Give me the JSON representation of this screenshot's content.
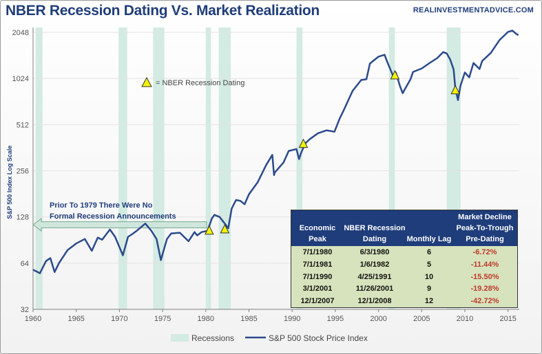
{
  "header": {
    "title": "NBER Recession Dating Vs. Market Realization",
    "site": "REALINVESTMENTADVICE.COM"
  },
  "chart_data": {
    "type": "line",
    "title": "NBER Recession Dating Vs. Market Realization",
    "ylabel": "S&P 500 Index Log Scale",
    "xlabel": "",
    "yscale": "log2",
    "ylim": [
      32,
      2200
    ],
    "xlim": [
      1960,
      2016.3
    ],
    "yticks": [
      "2048",
      "1024",
      "512",
      "256",
      "128",
      "64",
      "32"
    ],
    "xticks": [
      "1960",
      "1965",
      "1970",
      "1975",
      "1980",
      "1985",
      "1990",
      "1995",
      "2000",
      "2005",
      "2010",
      "2015"
    ],
    "legend": {
      "position": "bottom-center",
      "recessions_label": "Recessions",
      "series_label": "S&P 500 Stock Price Index"
    },
    "recessions": [
      [
        1960.3,
        1961.1
      ],
      [
        1969.9,
        1970.9
      ],
      [
        1973.9,
        1975.2
      ],
      [
        1980.0,
        1980.6
      ],
      [
        1981.5,
        1982.9
      ],
      [
        1990.5,
        1991.2
      ],
      [
        2001.2,
        2001.9
      ],
      [
        2007.9,
        2009.5
      ]
    ],
    "series": [
      {
        "name": "S&P 500 Stock Price Index",
        "points": [
          [
            1960.0,
            58
          ],
          [
            1960.8,
            55
          ],
          [
            1961.5,
            66
          ],
          [
            1962.0,
            69
          ],
          [
            1962.5,
            56
          ],
          [
            1963.0,
            64
          ],
          [
            1964.0,
            78
          ],
          [
            1965.0,
            86
          ],
          [
            1966.0,
            92
          ],
          [
            1966.8,
            77
          ],
          [
            1967.5,
            94
          ],
          [
            1968.0,
            91
          ],
          [
            1968.9,
            106
          ],
          [
            1969.5,
            95
          ],
          [
            1970.4,
            72
          ],
          [
            1971.0,
            95
          ],
          [
            1971.5,
            99
          ],
          [
            1972.0,
            104
          ],
          [
            1973.0,
            116
          ],
          [
            1973.7,
            104
          ],
          [
            1974.3,
            92
          ],
          [
            1974.8,
            67
          ],
          [
            1975.5,
            92
          ],
          [
            1976.0,
            100
          ],
          [
            1977.0,
            101
          ],
          [
            1978.0,
            89
          ],
          [
            1978.7,
            102
          ],
          [
            1979.0,
            97
          ],
          [
            1979.5,
            102
          ],
          [
            1980.2,
            104
          ],
          [
            1980.7,
            125
          ],
          [
            1981.0,
            132
          ],
          [
            1981.6,
            128
          ],
          [
            1982.3,
            114
          ],
          [
            1982.6,
            108
          ],
          [
            1983.0,
            145
          ],
          [
            1983.5,
            165
          ],
          [
            1984.0,
            163
          ],
          [
            1984.5,
            155
          ],
          [
            1985.0,
            180
          ],
          [
            1986.0,
            215
          ],
          [
            1987.0,
            280
          ],
          [
            1987.7,
            325
          ],
          [
            1987.9,
            240
          ],
          [
            1988.0,
            250
          ],
          [
            1989.0,
            290
          ],
          [
            1989.6,
            345
          ],
          [
            1990.5,
            355
          ],
          [
            1990.8,
            305
          ],
          [
            1991.0,
            330
          ],
          [
            1991.5,
            385
          ],
          [
            1992.0,
            410
          ],
          [
            1993.0,
            450
          ],
          [
            1994.0,
            470
          ],
          [
            1994.9,
            460
          ],
          [
            1995.5,
            560
          ],
          [
            1996.0,
            640
          ],
          [
            1997.0,
            850
          ],
          [
            1998.0,
            1000
          ],
          [
            1998.6,
            1010
          ],
          [
            1999.0,
            1280
          ],
          [
            2000.0,
            1420
          ],
          [
            2000.7,
            1460
          ],
          [
            2001.0,
            1320
          ],
          [
            2001.7,
            1060
          ],
          [
            2002.0,
            1120
          ],
          [
            2002.5,
            910
          ],
          [
            2002.8,
            820
          ],
          [
            2003.0,
            860
          ],
          [
            2003.7,
            1010
          ],
          [
            2004.0,
            1130
          ],
          [
            2005.0,
            1190
          ],
          [
            2006.0,
            1300
          ],
          [
            2006.8,
            1390
          ],
          [
            2007.5,
            1520
          ],
          [
            2007.9,
            1490
          ],
          [
            2008.3,
            1360
          ],
          [
            2008.7,
            1170
          ],
          [
            2008.9,
            880
          ],
          [
            2009.2,
            740
          ],
          [
            2009.5,
            920
          ],
          [
            2010.0,
            1120
          ],
          [
            2010.5,
            1040
          ],
          [
            2011.0,
            1290
          ],
          [
            2011.7,
            1180
          ],
          [
            2012.0,
            1330
          ],
          [
            2013.0,
            1500
          ],
          [
            2014.0,
            1820
          ],
          [
            2015.0,
            2060
          ],
          [
            2015.5,
            2100
          ],
          [
            2015.9,
            2010
          ],
          [
            2016.2,
            1960
          ]
        ]
      }
    ],
    "markers": [
      {
        "year": 1980.4,
        "value": 104
      },
      {
        "year": 1982.2,
        "value": 106
      },
      {
        "year": 1991.3,
        "value": 382
      },
      {
        "year": 2001.9,
        "value": 1070
      },
      {
        "year": 2008.9,
        "value": 855
      }
    ],
    "annotations": {
      "marker_key": "= NBER Recession Dating",
      "arrow_text_line1": "Prior To 1979 There Were No",
      "arrow_text_line2": "Formal Recession Announcements"
    }
  },
  "table": {
    "headers": [
      [
        "Economic",
        "Peak"
      ],
      [
        "NBER Recession",
        "Dating"
      ],
      [
        "Monthly Lag"
      ],
      [
        "Market Decline",
        "Peak-To-Trough",
        "Pre-Dating"
      ]
    ],
    "rows": [
      [
        "7/1/1980",
        "6/3/1980",
        "6",
        "-6.72%"
      ],
      [
        "7/1/1981",
        "1/6/1982",
        "5",
        "-11.44%"
      ],
      [
        "7/1/1990",
        "4/25/1991",
        "10",
        "-15.50%"
      ],
      [
        "3/1/2001",
        "11/26/2001",
        "9",
        "-19.28%"
      ],
      [
        "12/1/2007",
        "12/1/2008",
        "12",
        "-42.72%"
      ]
    ]
  }
}
